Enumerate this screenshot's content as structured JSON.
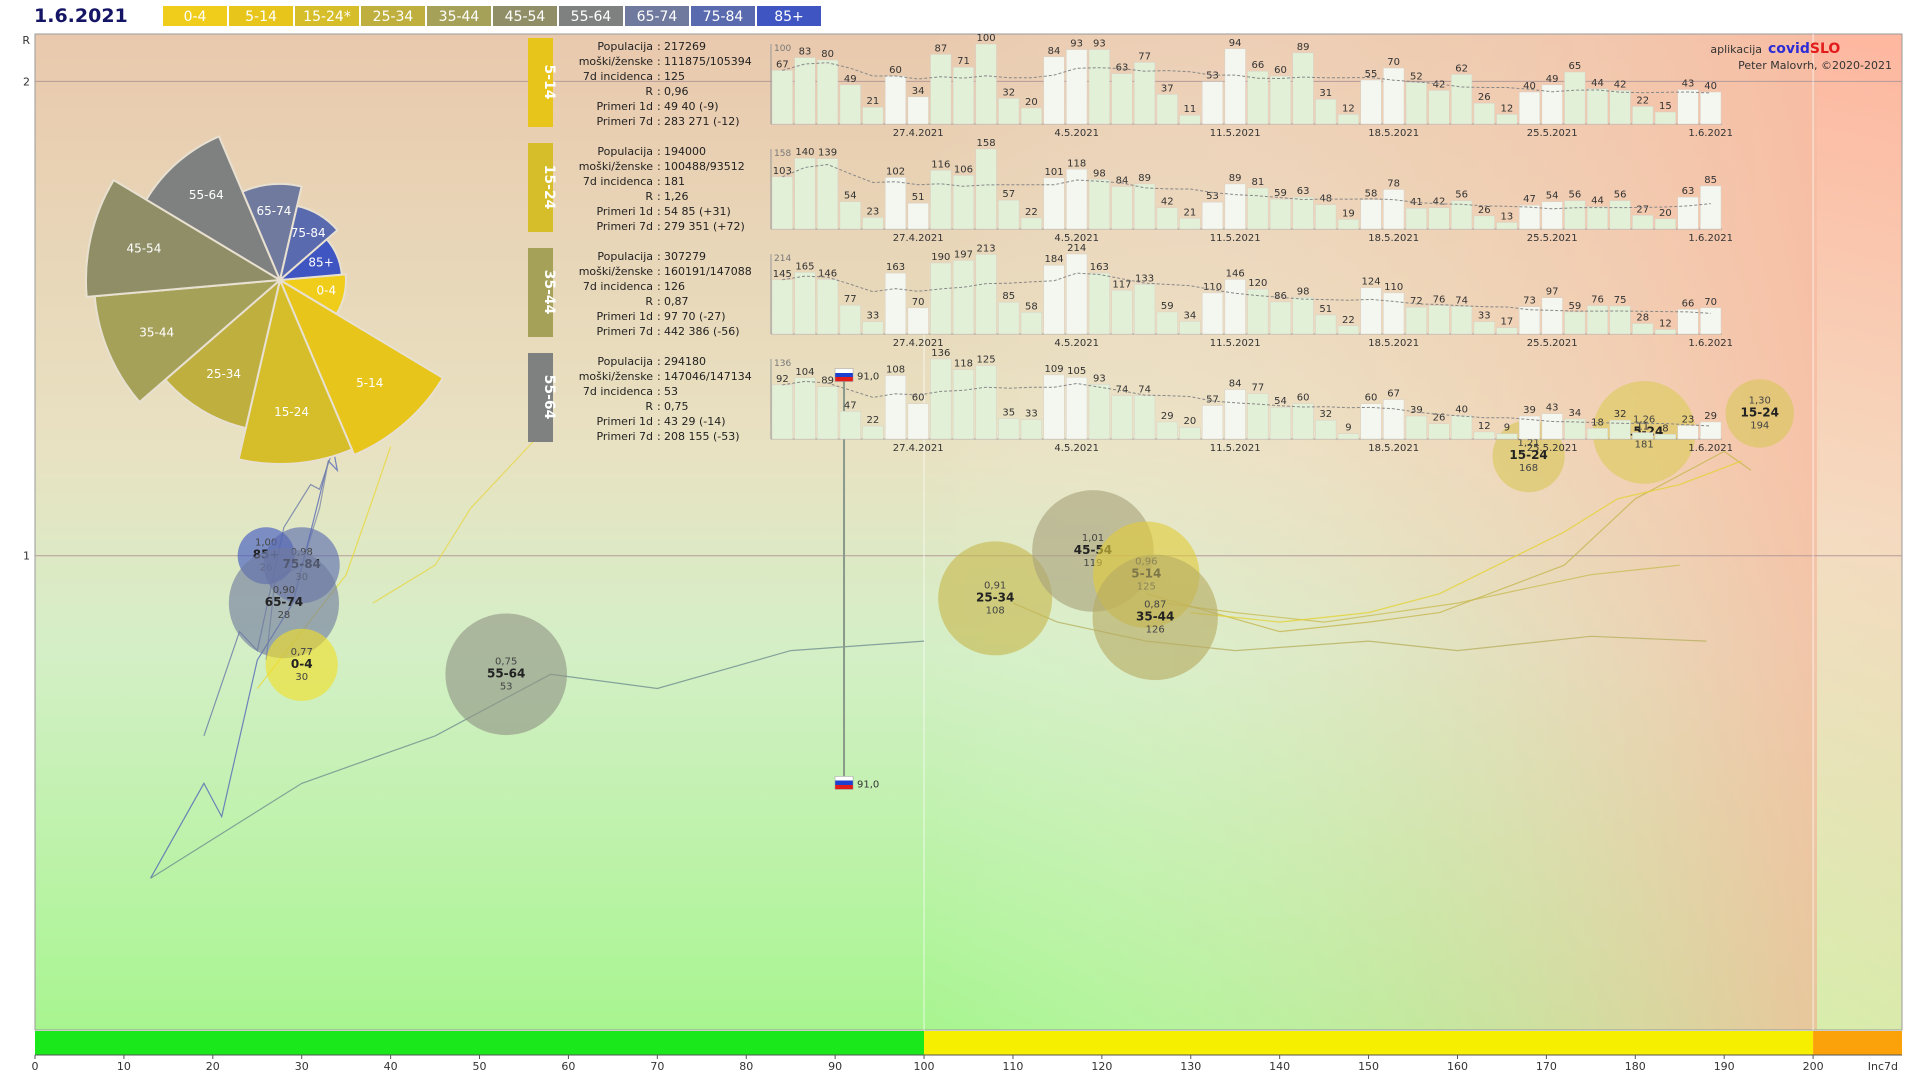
{
  "header": {
    "date": "1.6.2021",
    "chips": [
      {
        "label": "0-4",
        "color": "#f0cd1a",
        "text": "#ffffff"
      },
      {
        "label": "5-14",
        "color": "#e8c51a",
        "text": "#ffffff"
      },
      {
        "label": "15-24*",
        "color": "#d6be2a",
        "text": "#ffffff"
      },
      {
        "label": "25-34",
        "color": "#bfaf3f",
        "text": "#ffffff"
      },
      {
        "label": "35-44",
        "color": "#a6a158",
        "text": "#ffffff"
      },
      {
        "label": "45-54",
        "color": "#8f8e66",
        "text": "#ffffff"
      },
      {
        "label": "55-64",
        "color": "#7f8080",
        "text": "#ffffff"
      },
      {
        "label": "65-74",
        "color": "#6f7a9e",
        "text": "#ffffff"
      },
      {
        "label": "75-84",
        "color": "#5a6aae",
        "text": "#ffffff"
      },
      {
        "label": "85+",
        "color": "#3e55c2",
        "text": "#ffffff"
      }
    ]
  },
  "credits": {
    "prefix": "aplikacija",
    "brand_a": "covid",
    "brand_b": "SLO",
    "author": "Peter Malovrh, ©2020-2021",
    "brand_a_color": "#2c2cd6",
    "brand_b_color": "#e21b1b"
  },
  "chart_data": [
    {
      "type": "scatter",
      "xlabel": "Inc7d",
      "ylabel": "R",
      "xlim": [
        0,
        210
      ],
      "ylim": [
        0,
        2.1
      ],
      "x_ticks": [
        0,
        10,
        20,
        30,
        40,
        50,
        60,
        70,
        80,
        90,
        100,
        110,
        120,
        130,
        140,
        150,
        160,
        170,
        180,
        190,
        200
      ],
      "y_ticks": [
        1,
        2
      ],
      "zones": [
        {
          "from": 0,
          "to": 100,
          "color": "#1be81b"
        },
        {
          "from": 100,
          "to": 200,
          "color": "#f6ef00"
        },
        {
          "from": 200,
          "to": 210,
          "color": "#fba20a"
        }
      ],
      "flag_markers": [
        {
          "x": 91,
          "y": 1.38,
          "label": "91,0"
        },
        {
          "x": 91,
          "y": 0.52,
          "label": "91,0"
        }
      ],
      "bubbles": [
        {
          "group": "85+",
          "r": "1,00",
          "r_value": 1.0,
          "inc": "26",
          "x": 26,
          "color": "#3e55c2",
          "size": 0.75
        },
        {
          "group": "75-84",
          "r": "0,98",
          "r_value": 0.98,
          "inc": "30",
          "x": 30,
          "color": "#5a6aae",
          "size": 1.0
        },
        {
          "group": "65-74",
          "r": "0,90",
          "r_value": 0.9,
          "inc": "28",
          "x": 28,
          "color": "#6f7a9e",
          "size": 1.45
        },
        {
          "group": "0-4",
          "r": "0,77",
          "r_value": 0.77,
          "inc": "30",
          "x": 30,
          "color": "#f0df26",
          "size": 0.95
        },
        {
          "group": "55-64",
          "r": "0,75",
          "r_value": 0.75,
          "inc": "53",
          "x": 53,
          "color": "#8f9585",
          "size": 1.6
        },
        {
          "group": "25-34",
          "r": "0,91",
          "r_value": 0.91,
          "inc": "108",
          "x": 108,
          "color": "#c7b84e",
          "size": 1.5
        },
        {
          "group": "45-54",
          "r": "1,01",
          "r_value": 1.01,
          "inc": "119",
          "x": 119,
          "color": "#a8a27a",
          "size": 1.6
        },
        {
          "group": "5-14",
          "r": "0,96",
          "r_value": 0.96,
          "inc": "125",
          "x": 125,
          "color": "#e0cb3b",
          "size": 1.4
        },
        {
          "group": "35-44",
          "r": "0,87",
          "r_value": 0.87,
          "inc": "126",
          "x": 126,
          "color": "#b7ab63",
          "size": 1.65
        },
        {
          "group": "15-24",
          "r": "1,21",
          "r_value": 1.21,
          "inc": "168",
          "x": 168,
          "color": "#d9c75a",
          "size": 0.95
        },
        {
          "group": "15-24",
          "r": "1,26",
          "r_value": 1.26,
          "inc": "181",
          "x": 181,
          "color": "#dccb5a",
          "size": 1.35
        },
        {
          "group": "15-24",
          "r": "1,30",
          "r_value": 1.3,
          "inc": "194",
          "x": 194,
          "color": "#d8c65a",
          "size": 0.9
        }
      ],
      "trails": [
        {
          "color": "#5466b8",
          "points": [
            [
              13,
              0.32
            ],
            [
              19,
              0.52
            ],
            [
              21,
              0.45
            ],
            [
              25,
              0.78
            ],
            [
              29,
              0.9
            ],
            [
              33,
              1.2
            ],
            [
              34,
              1.18
            ],
            [
              33,
              1.28
            ]
          ]
        },
        {
          "color": "#6b7aa8",
          "points": [
            [
              19,
              0.62
            ],
            [
              23,
              0.84
            ],
            [
              25,
              0.8
            ],
            [
              28,
              1.06
            ],
            [
              31,
              1.15
            ],
            [
              32,
              1.14
            ],
            [
              34,
              1.25
            ],
            [
              33,
              1.38
            ]
          ]
        },
        {
          "color": "#7f8aa8",
          "points": [
            [
              26,
              0.78
            ],
            [
              27,
              0.95
            ],
            [
              30,
              0.98
            ],
            [
              32,
              1.1
            ],
            [
              33,
              1.2
            ]
          ]
        },
        {
          "color": "#e8d83a",
          "points": [
            [
              25,
              0.72
            ],
            [
              30,
              0.84
            ],
            [
              35,
              0.96
            ],
            [
              38,
              1.12
            ],
            [
              40,
              1.23
            ]
          ]
        },
        {
          "color": "#e6d74a",
          "points": [
            [
              38,
              0.9
            ],
            [
              45,
              0.98
            ],
            [
              49,
              1.1
            ],
            [
              52,
              1.16
            ],
            [
              56,
              1.24
            ]
          ]
        },
        {
          "color": "#6f8f8f",
          "points": [
            [
              13,
              0.32
            ],
            [
              30,
              0.52
            ],
            [
              45,
              0.62
            ],
            [
              58,
              0.75
            ],
            [
              70,
              0.72
            ],
            [
              85,
              0.8
            ],
            [
              100,
              0.82
            ]
          ]
        },
        {
          "color": "#b8b060",
          "points": [
            [
              110,
              0.9
            ],
            [
              115,
              0.86
            ],
            [
              125,
              0.82
            ],
            [
              135,
              0.8
            ],
            [
              150,
              0.82
            ],
            [
              160,
              0.8
            ],
            [
              175,
              0.83
            ],
            [
              188,
              0.82
            ]
          ]
        },
        {
          "color": "#c9bd56",
          "points": [
            [
              127,
              0.9
            ],
            [
              135,
              0.88
            ],
            [
              145,
              0.86
            ],
            [
              160,
              0.9
            ],
            [
              175,
              0.96
            ],
            [
              185,
              0.98
            ]
          ]
        },
        {
          "color": "#c6b650",
          "points": [
            [
              125,
              0.92
            ],
            [
              140,
              0.84
            ],
            [
              150,
              0.86
            ],
            [
              158,
              0.88
            ],
            [
              172,
              0.98
            ],
            [
              180,
              1.12
            ],
            [
              190,
              1.22
            ],
            [
              193,
              1.18
            ]
          ]
        },
        {
          "color": "#e3d232",
          "points": [
            [
              130,
              0.88
            ],
            [
              140,
              0.86
            ],
            [
              150,
              0.88
            ],
            [
              158,
              0.92
            ],
            [
              172,
              1.05
            ],
            [
              178,
              1.12
            ],
            [
              185,
              1.15
            ],
            [
              192,
              1.2
            ]
          ]
        }
      ]
    },
    {
      "type": "pie",
      "title": "",
      "slices": [
        {
          "label": "0-4",
          "color": "#f0cd1a",
          "radius": 0.33
        },
        {
          "label": "5-14",
          "color": "#e8c51a",
          "radius": 0.95
        },
        {
          "label": "15-24",
          "color": "#d6be2a",
          "radius": 0.92
        },
        {
          "label": "25-34",
          "color": "#bfaf3f",
          "radius": 0.76
        },
        {
          "label": "35-44",
          "color": "#a6a158",
          "radius": 0.93
        },
        {
          "label": "45-54",
          "color": "#8f8e66",
          "radius": 0.97
        },
        {
          "label": "55-64",
          "color": "#7f8080",
          "radius": 0.78
        },
        {
          "label": "65-74",
          "color": "#6f7a9e",
          "radius": 0.48
        },
        {
          "label": "75-84",
          "color": "#5a6aae",
          "radius": 0.38
        },
        {
          "label": "85+",
          "color": "#3e55c2",
          "radius": 0.31
        }
      ]
    },
    {
      "type": "bar",
      "group": "5-14",
      "color": "#e8c51a",
      "stats": [
        {
          "label": "Populacija",
          "value": "217269"
        },
        {
          "label": "moški/ženske",
          "value": "111875/105394"
        },
        {
          "label": "7d incidenca",
          "value": "125"
        },
        {
          "label": "R",
          "value": "0,96"
        },
        {
          "label": "Primeri 1d",
          "value": "49 40 (-9)"
        },
        {
          "label": "Primeri 7d",
          "value": "283 271 (-12)"
        }
      ],
      "ymax_label": "100",
      "ymax": 100,
      "values": [
        67,
        83,
        80,
        49,
        21,
        60,
        34,
        87,
        71,
        100,
        32,
        20,
        84,
        93,
        93,
        63,
        77,
        37,
        11,
        53,
        94,
        66,
        60,
        89,
        31,
        12,
        55,
        70,
        52,
        42,
        62,
        26,
        12,
        40,
        49,
        65,
        44,
        42,
        22,
        15,
        43,
        40
      ],
      "x_labels": [
        "27.4.2021",
        "4.5.2021",
        "11.5.2021",
        "18.5.2021",
        "25.5.2021",
        "1.6.2021"
      ]
    },
    {
      "type": "bar",
      "group": "15-24",
      "color": "#d6be2a",
      "stats": [
        {
          "label": "Populacija",
          "value": "194000"
        },
        {
          "label": "moški/ženske",
          "value": "100488/93512"
        },
        {
          "label": "7d incidenca",
          "value": "181"
        },
        {
          "label": "R",
          "value": "1,26"
        },
        {
          "label": "Primeri 1d",
          "value": "54 85 (+31)"
        },
        {
          "label": "Primeri 7d",
          "value": "279 351 (+72)"
        }
      ],
      "ymax_label": "158",
      "ymax": 158,
      "values": [
        103,
        140,
        139,
        54,
        23,
        102,
        51,
        116,
        106,
        158,
        57,
        22,
        101,
        118,
        98,
        84,
        89,
        42,
        21,
        53,
        89,
        81,
        59,
        63,
        48,
        19,
        58,
        78,
        41,
        42,
        56,
        26,
        13,
        47,
        54,
        56,
        44,
        56,
        27,
        20,
        63,
        85
      ],
      "x_labels": [
        "27.4.2021",
        "4.5.2021",
        "11.5.2021",
        "18.5.2021",
        "25.5.2021",
        "1.6.2021"
      ]
    },
    {
      "type": "bar",
      "group": "35-44",
      "color": "#a6a158",
      "stats": [
        {
          "label": "Populacija",
          "value": "307279"
        },
        {
          "label": "moški/ženske",
          "value": "160191/147088"
        },
        {
          "label": "7d incidenca",
          "value": "126"
        },
        {
          "label": "R",
          "value": "0,87"
        },
        {
          "label": "Primeri 1d",
          "value": "97 70 (-27)"
        },
        {
          "label": "Primeri 7d",
          "value": "442 386 (-56)"
        }
      ],
      "ymax_label": "214",
      "ymax": 214,
      "values": [
        145,
        165,
        146,
        77,
        33,
        163,
        70,
        190,
        197,
        213,
        85,
        58,
        184,
        214,
        163,
        117,
        133,
        59,
        34,
        110,
        146,
        120,
        86,
        98,
        51,
        22,
        124,
        110,
        72,
        76,
        74,
        33,
        17,
        73,
        97,
        59,
        76,
        75,
        28,
        12,
        66,
        70
      ],
      "x_labels": [
        "27.4.2021",
        "4.5.2021",
        "11.5.2021",
        "18.5.2021",
        "25.5.2021",
        "1.6.2021"
      ]
    },
    {
      "type": "bar",
      "group": "55-64",
      "color": "#7f8080",
      "stats": [
        {
          "label": "Populacija",
          "value": "294180"
        },
        {
          "label": "moški/ženske",
          "value": "147046/147134"
        },
        {
          "label": "7d incidenca",
          "value": "53"
        },
        {
          "label": "R",
          "value": "0,75"
        },
        {
          "label": "Primeri 1d",
          "value": "43 29 (-14)"
        },
        {
          "label": "Primeri 7d",
          "value": "208 155 (-53)"
        }
      ],
      "ymax_label": "136",
      "ymax": 136,
      "values": [
        92,
        104,
        89,
        47,
        22,
        108,
        60,
        136,
        118,
        125,
        35,
        33,
        109,
        105,
        93,
        74,
        74,
        29,
        20,
        57,
        84,
        77,
        54,
        60,
        32,
        9,
        60,
        67,
        39,
        26,
        40,
        12,
        9,
        39,
        43,
        34,
        18,
        32,
        11,
        8,
        23,
        29
      ],
      "x_labels": [
        "27.4.2021",
        "4.5.2021",
        "11.5.2021",
        "18.5.2021",
        "25.5.2021",
        "1.6.2021"
      ]
    }
  ]
}
